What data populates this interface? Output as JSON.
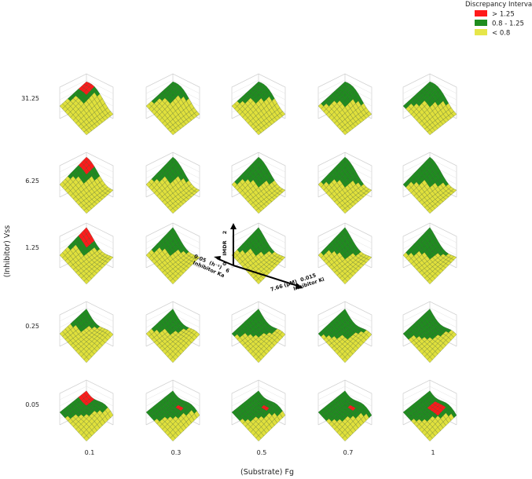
{
  "chart_data": {
    "type": "surface-grid",
    "xlabel": "(Substrate) Fg",
    "ylabel": "(Inhibitor) Vss",
    "x_categories": [
      "0.1",
      "0.3",
      "0.5",
      "0.7",
      "1"
    ],
    "y_categories": [
      "31.25",
      "6.25",
      "1.25",
      "0.25",
      "0.05"
    ],
    "legend": {
      "title": "Discrepancy Intervals",
      "position": "top-right",
      "entries": [
        {
          "label": "> 1.25",
          "color": "#ff1a1a"
        },
        {
          "label": "0.8 - 1.25",
          "color": "#1f8c1f"
        },
        {
          "label": "< 0.8",
          "color": "#d4d42a"
        }
      ]
    },
    "inset_axes": {
      "z_label": "IMDR",
      "z_max": "2",
      "z_min": "0",
      "left_axis_label": "Inhibitor Ka",
      "left_axis_unit": "(h⁻¹)",
      "left_axis_min": "0.05",
      "left_axis_max": "6",
      "right_axis_label": "Inhibitor Ki",
      "right_axis_unit": "(µM)",
      "right_axis_min": "7.66",
      "right_axis_max": "0.015"
    },
    "panels": [
      [
        {
          "red": 0.14,
          "green": 0.38
        },
        {
          "red": 0,
          "green": 0.42
        },
        {
          "red": 0,
          "green": 0.45
        },
        {
          "red": 0,
          "green": 0.5
        },
        {
          "red": 0,
          "green": 0.52
        }
      ],
      [
        {
          "red": 0.12,
          "green": 0.4
        },
        {
          "red": 0,
          "green": 0.44
        },
        {
          "red": 0,
          "green": 0.48
        },
        {
          "red": 0,
          "green": 0.5
        },
        {
          "red": 0,
          "green": 0.52
        }
      ],
      [
        {
          "red": 0.12,
          "green": 0.38
        },
        {
          "red": 0,
          "green": 0.42
        },
        {
          "red": 0,
          "green": 0.45
        },
        {
          "red": 0,
          "green": 0.48
        },
        {
          "red": 0,
          "green": 0.5
        }
      ],
      [
        {
          "red": 0,
          "green": 0.35
        },
        {
          "red": 0,
          "green": 0.45
        },
        {
          "red": 0,
          "green": 0.55
        },
        {
          "red": 0,
          "green": 0.58
        },
        {
          "red": 0,
          "green": 0.6
        }
      ],
      [
        {
          "red": 0.14,
          "green": 0.62
        },
        {
          "red": 0.05,
          "green": 0.68
        },
        {
          "red": 0.05,
          "green": 0.7
        },
        {
          "red": 0.06,
          "green": 0.72
        },
        {
          "red": 0.12,
          "green": 0.72
        }
      ]
    ]
  }
}
